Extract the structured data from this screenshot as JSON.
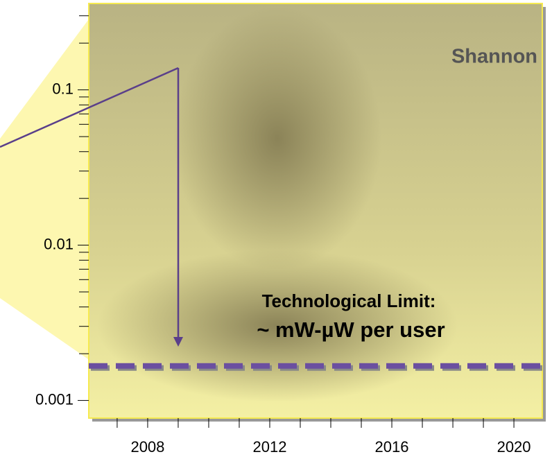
{
  "chart_data": {
    "type": "reference",
    "title": "Shannon",
    "annotation_lines": [
      "Technological Limit:",
      "~ mW-µW per user"
    ],
    "log_y": true,
    "ylim": [
      0.00077,
      0.36
    ],
    "yticks": [
      0.001,
      0.01,
      0.1
    ],
    "yminor_ticks": [
      0.002,
      0.003,
      0.004,
      0.005,
      0.006,
      0.007,
      0.008,
      0.009,
      0.02,
      0.03,
      0.04,
      0.05,
      0.06,
      0.07,
      0.08,
      0.09,
      0.2,
      0.3
    ],
    "xlim": [
      2006.07,
      2020.93
    ],
    "xticks": [
      2008,
      2012,
      2016,
      2020
    ],
    "xminor_ticks": [
      2007,
      2009,
      2010,
      2011,
      2013,
      2014,
      2015,
      2017,
      2018,
      2019
    ],
    "reference_lines": [
      {
        "value": 0.00167,
        "color": "#6b4fa0"
      }
    ]
  }
}
